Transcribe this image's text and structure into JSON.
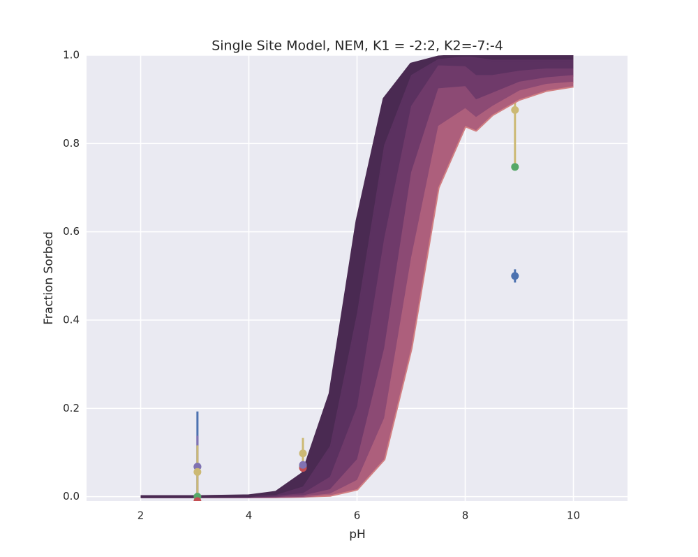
{
  "chart_data": {
    "type": "line",
    "title": "Single Site Model, NEM, K1 = -2:2, K2=-7:-4",
    "xlabel": "pH",
    "ylabel": "Fraction Sorbed",
    "xlim": [
      1,
      11
    ],
    "xticks": [
      2,
      4,
      6,
      8,
      10
    ],
    "ylim": [
      -0.01,
      1.0
    ],
    "yticks": [
      {
        "value": 0,
        "label": "0.0"
      },
      0.2,
      0.4,
      0.6,
      0.8,
      {
        "value": 1,
        "label": "1.0"
      }
    ],
    "grid": true,
    "background": "#eaeaf2",
    "x": [
      2,
      3,
      4,
      4.5,
      5,
      5.5,
      6,
      6.5,
      7,
      7.5,
      8,
      8.2,
      8.5,
      9,
      9.5,
      10
    ],
    "series": [
      {
        "color": "#4a2a52",
        "values": [
          0,
          0,
          0.002,
          0.01,
          0.053,
          0.233,
          0.625,
          0.901,
          0.98,
          0.996,
          1,
          1,
          1,
          1,
          1,
          1
        ]
      },
      {
        "color": "#5b3160",
        "values": [
          0,
          0,
          0.001,
          0.004,
          0.023,
          0.115,
          0.416,
          0.796,
          0.955,
          0.991,
          0.998,
          0.995,
          0.99,
          0.99,
          0.99,
          0.99
        ]
      },
      {
        "color": "#6f3a6a",
        "values": [
          0,
          0,
          0,
          0.002,
          0.008,
          0.045,
          0.204,
          0.584,
          0.885,
          0.977,
          0.975,
          0.955,
          0.955,
          0.965,
          0.97,
          0.97
        ]
      },
      {
        "color": "#8c4a74",
        "values": [
          0,
          0,
          0,
          0.001,
          0.003,
          0.017,
          0.085,
          0.336,
          0.735,
          0.925,
          0.93,
          0.9,
          0.915,
          0.94,
          0.95,
          0.955
        ]
      },
      {
        "color": "#ad5f7c",
        "values": [
          0,
          0,
          0,
          0,
          0.001,
          0.007,
          0.038,
          0.178,
          0.542,
          0.84,
          0.88,
          0.86,
          0.885,
          0.92,
          0.935,
          0.94
        ]
      },
      {
        "color": "#d17f82",
        "values": [
          0,
          0,
          0,
          0,
          0.001,
          0.003,
          0.017,
          0.085,
          0.336,
          0.7,
          0.84,
          0.83,
          0.865,
          0.9,
          0.92,
          0.93
        ]
      }
    ],
    "points": [
      {
        "color": "#4c72b0",
        "x": [
          3.05,
          5,
          8.92
        ],
        "values": [
          0.068,
          0.07,
          0.5
        ],
        "errors": [
          0.125,
          0.01,
          0.015
        ]
      },
      {
        "color": "#55a868",
        "x": [
          3.05,
          5,
          8.92
        ],
        "values": [
          0,
          0.068,
          0.747
        ],
        "errors": [
          0.01,
          0.005,
          0.005
        ]
      },
      {
        "color": "#c44e52",
        "x": [
          3.05,
          5
        ],
        "values": [
          -0.01,
          0.065
        ],
        "errors": [
          0.01,
          0.005
        ]
      },
      {
        "color": "#8172b2",
        "x": [
          3.05,
          5
        ],
        "values": [
          0.068,
          0.072
        ],
        "errors": [
          0.07,
          0.01
        ]
      },
      {
        "color": "#ccb974",
        "x": [
          3.05,
          5,
          8.92
        ],
        "values": [
          0.056,
          0.098,
          0.876
        ],
        "errors": [
          0.06,
          0.035,
          0.13
        ]
      }
    ]
  }
}
